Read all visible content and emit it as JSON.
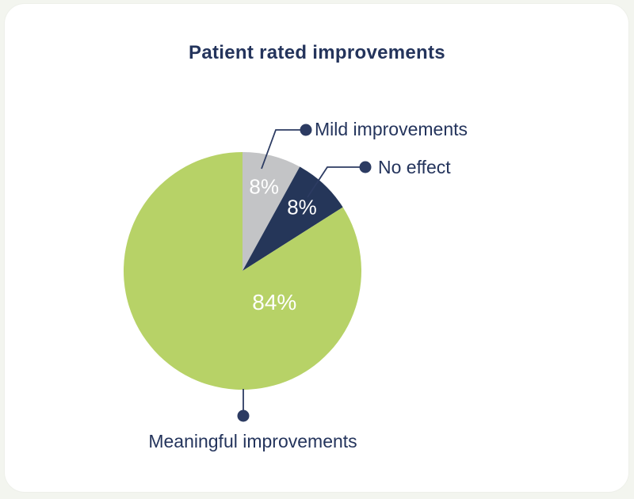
{
  "page": {
    "background_color": "#f3f5ef",
    "card_color": "#ffffff"
  },
  "chart_data": {
    "type": "pie",
    "title": "Patient rated improvements",
    "legend_position": "callout-labels",
    "direction": "clockwise",
    "start_angle_deg": 0,
    "slices": [
      {
        "label": "Mild improvements",
        "value": 8,
        "pct_label": "8%",
        "color": "#c3c4c6",
        "label_angle_deg": 14.4,
        "label_radius_frac": 0.73
      },
      {
        "label": "No effect",
        "value": 8,
        "pct_label": "8%",
        "color": "#253659",
        "label_angle_deg": 43.2,
        "label_radius_frac": 0.73
      },
      {
        "label": "Meaningful improvements",
        "value": 84,
        "pct_label": "84%",
        "color": "#b7d267",
        "label_angle_deg": 135,
        "label_radius_frac": 0.38
      }
    ],
    "text_color": "#24345c",
    "leader_line_color": "#2c3b62",
    "pct_label_color": "#ffffff"
  }
}
